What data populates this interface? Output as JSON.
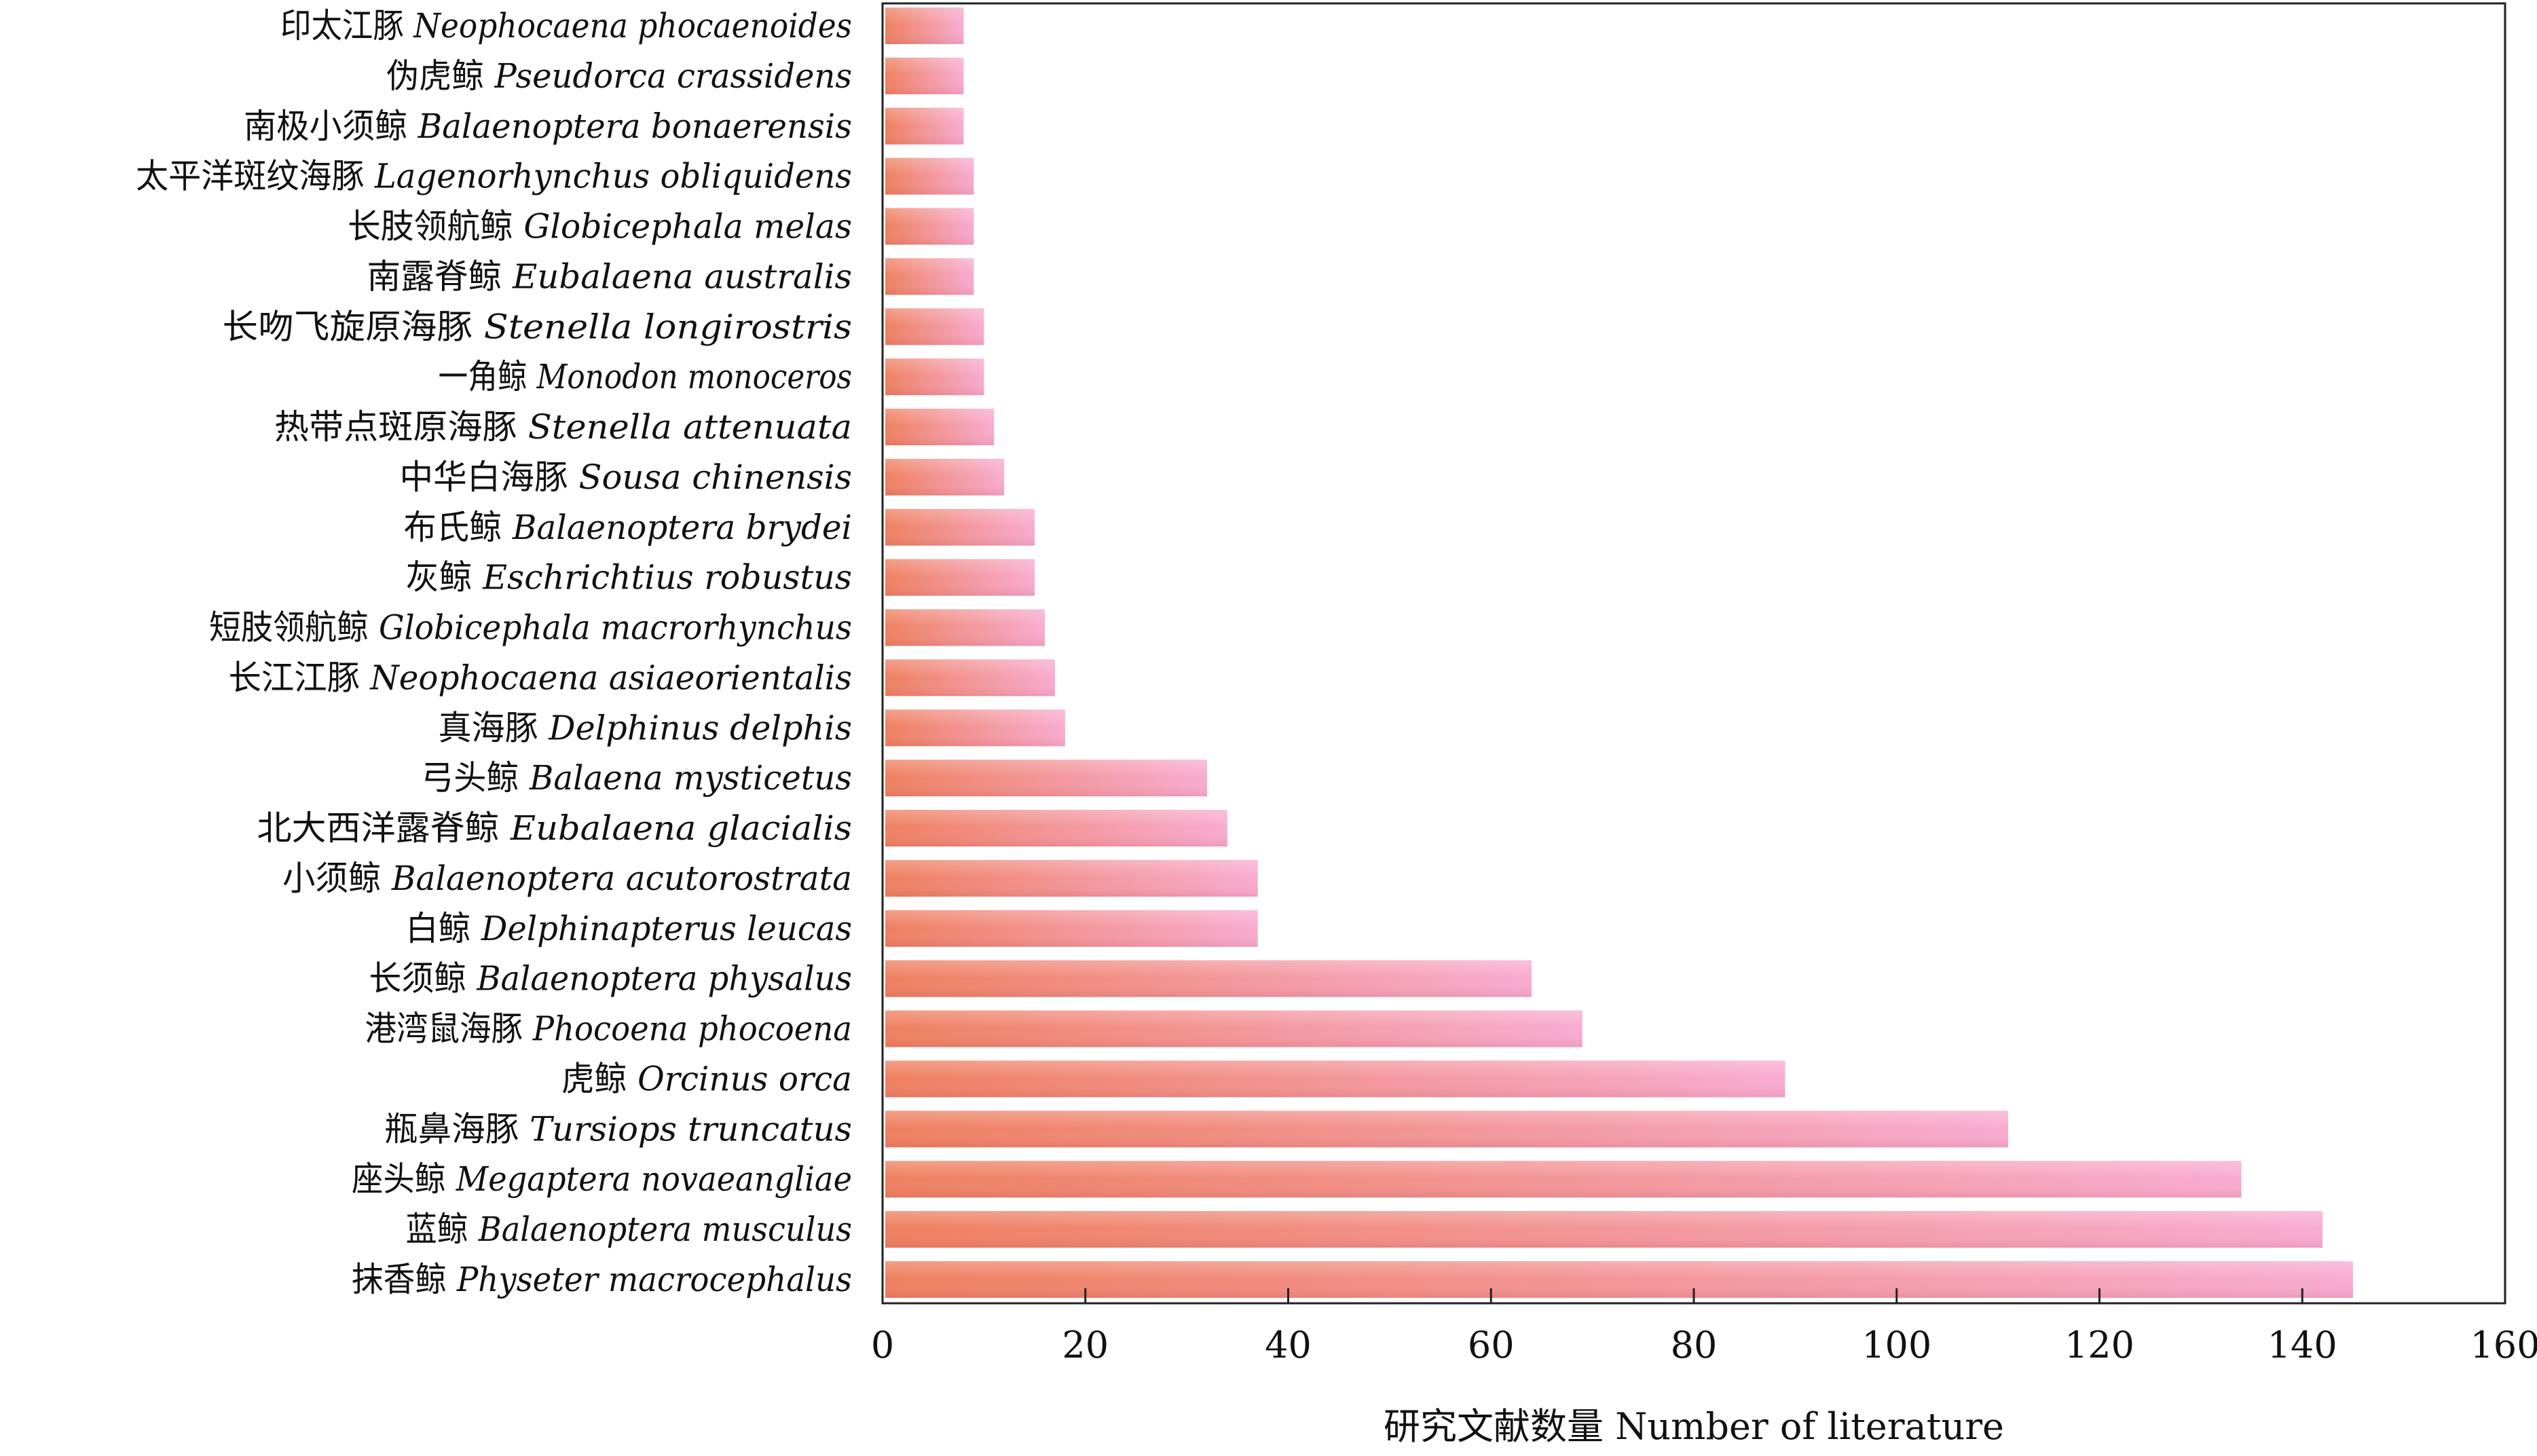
{
  "chart_data": {
    "type": "bar",
    "orientation": "horizontal",
    "title": "",
    "xlabel": "研究文献数量  Number of literature",
    "ylabel": "",
    "xlim": [
      0,
      160
    ],
    "xticks": [
      0,
      20,
      40,
      60,
      80,
      100,
      120,
      140,
      160
    ],
    "grid": false,
    "legend": "none",
    "bar_colors": {
      "start": "#ee7f5e",
      "end": "#f8abd0"
    },
    "categories": [
      {
        "cn": "印太江豚",
        "latin": "Neophocaena phocaenoides",
        "value": 8
      },
      {
        "cn": "伪虎鲸",
        "latin": "Pseudorca crassidens",
        "value": 8
      },
      {
        "cn": "南极小须鲸",
        "latin": "Balaenoptera bonaerensis",
        "value": 8
      },
      {
        "cn": "太平洋斑纹海豚",
        "latin": "Lagenorhynchus obliquidens",
        "value": 9
      },
      {
        "cn": "长肢领航鲸",
        "latin": "Globicephala melas",
        "value": 9
      },
      {
        "cn": "南露脊鲸",
        "latin": "Eubalaena australis",
        "value": 9
      },
      {
        "cn": "长吻飞旋原海豚",
        "latin": "Stenella longirostris",
        "value": 10
      },
      {
        "cn": "一角鲸",
        "latin": "Monodon monoceros",
        "value": 10
      },
      {
        "cn": "热带点斑原海豚",
        "latin": "Stenella attenuata",
        "value": 11
      },
      {
        "cn": "中华白海豚",
        "latin": "Sousa chinensis",
        "value": 12
      },
      {
        "cn": "布氏鲸",
        "latin": "Balaenoptera brydei",
        "value": 15
      },
      {
        "cn": "灰鲸",
        "latin": "Eschrichtius robustus",
        "value": 15
      },
      {
        "cn": "短肢领航鲸",
        "latin": "Globicephala macrorhynchus",
        "value": 16
      },
      {
        "cn": "长江江豚",
        "latin": "Neophocaena asiaeorientalis",
        "value": 17
      },
      {
        "cn": "真海豚",
        "latin": "Delphinus delphis",
        "value": 18
      },
      {
        "cn": "弓头鲸",
        "latin": "Balaena mysticetus",
        "value": 32
      },
      {
        "cn": "北大西洋露脊鲸",
        "latin": "Eubalaena glacialis",
        "value": 34
      },
      {
        "cn": "小须鲸",
        "latin": "Balaenoptera acutorostrata",
        "value": 37
      },
      {
        "cn": "白鲸",
        "latin": "Delphinapterus leucas",
        "value": 37
      },
      {
        "cn": "长须鲸",
        "latin": "Balaenoptera physalus",
        "value": 64
      },
      {
        "cn": "港湾鼠海豚",
        "latin": "Phocoena phocoena",
        "value": 69
      },
      {
        "cn": "虎鲸",
        "latin": "Orcinus orca",
        "value": 89
      },
      {
        "cn": "瓶鼻海豚",
        "latin": "Tursiops truncatus",
        "value": 111
      },
      {
        "cn": "座头鲸",
        "latin": "Megaptera novaeangliae",
        "value": 134
      },
      {
        "cn": "蓝鲸",
        "latin": "Balaenoptera musculus",
        "value": 142
      },
      {
        "cn": "抹香鲸",
        "latin": "Physeter macrocephalus",
        "value": 145
      }
    ]
  }
}
